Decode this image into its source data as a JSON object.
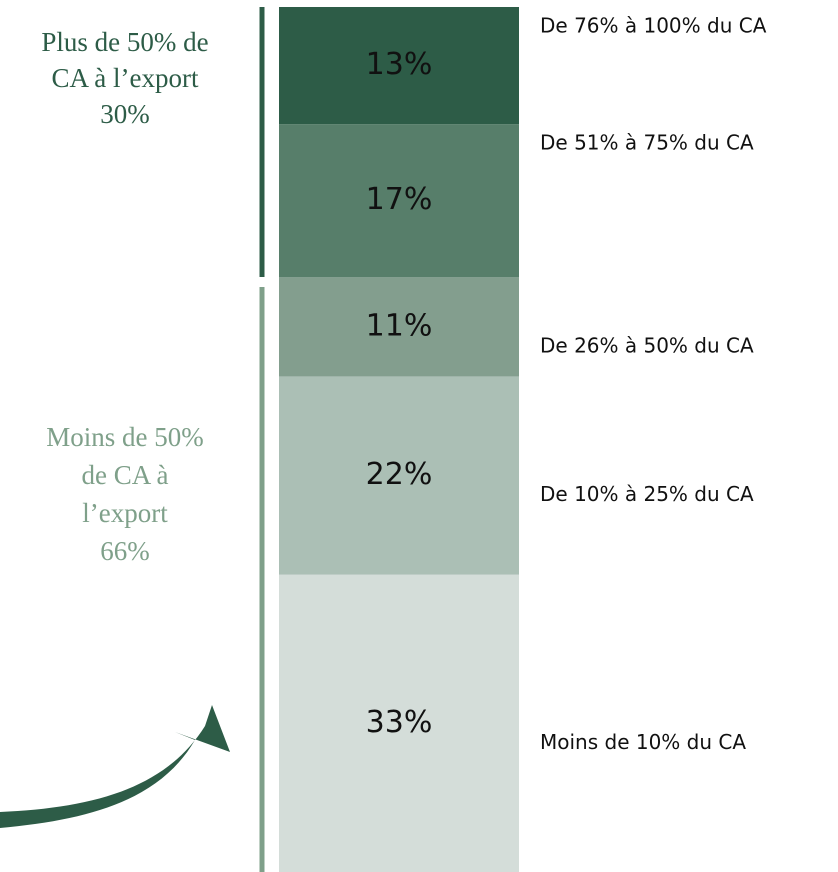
{
  "chart_data": {
    "type": "bar",
    "categories": [
      null
    ],
    "ylim": [
      0,
      96
    ],
    "series": [
      {
        "name": "Moins de 10% du CA",
        "color": "#d4ddd9",
        "values": [
          33
        ],
        "value_labels": [
          "33%"
        ]
      },
      {
        "name": "De 10% à 25% du CA",
        "color": "#abbfb5",
        "values": [
          22
        ],
        "value_labels": [
          "22%"
        ]
      },
      {
        "name": "De 26% à 50% du CA",
        "color": "#839e8e",
        "values": [
          11
        ],
        "value_labels": [
          "11%"
        ]
      },
      {
        "name": "De 51% à 75% du CA",
        "color": "#577e6a",
        "values": [
          17
        ],
        "value_labels": [
          "17%"
        ]
      },
      {
        "name": "De 76% à 100% du CA",
        "color": "#2d5c47",
        "values": [
          13
        ],
        "value_labels": [
          "13%"
        ]
      }
    ],
    "groups": [
      {
        "color": "#2d5c47",
        "lines": [
          "Plus de 50% de",
          "CA à l’export",
          "30%"
        ]
      },
      {
        "color": "#7fa08a",
        "lines": [
          "Moins de 50%",
          "de CA à",
          "l’export",
          "66%"
        ]
      }
    ]
  }
}
